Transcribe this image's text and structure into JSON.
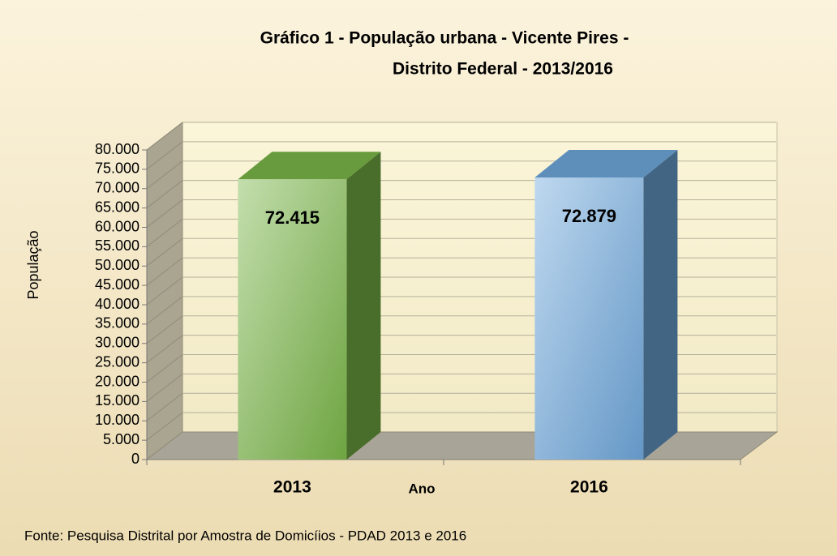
{
  "chart_data": {
    "type": "bar3d",
    "title": [
      "Gráfico 1 - População urbana - Vicente Pires -",
      "Distrito Federal - 2013/2016"
    ],
    "y_label": "População",
    "x_label": "Ano",
    "categories": [
      "2013",
      "2016"
    ],
    "values": [
      72415,
      72879
    ],
    "value_labels": [
      "72.415",
      "72.879"
    ],
    "colors": [
      "#7ab648",
      "#6fa8dc"
    ],
    "ylim": [
      0,
      80000
    ],
    "yticks": [
      0,
      {
        "value": 5000,
        "label": "5.000"
      },
      {
        "value": 10000,
        "label": "10.000"
      },
      {
        "value": 15000,
        "label": "15.000"
      },
      {
        "value": 20000,
        "label": "20.000"
      },
      {
        "value": 25000,
        "label": "25.000"
      },
      {
        "value": 30000,
        "label": "30.000"
      },
      {
        "value": 35000,
        "label": "35.000"
      },
      {
        "value": 40000,
        "label": "40.000"
      },
      {
        "value": 45000,
        "label": "45.000"
      },
      {
        "value": 50000,
        "label": "50.000"
      },
      {
        "value": 55000,
        "label": "55.000"
      },
      {
        "value": 60000,
        "label": "60.000"
      },
      {
        "value": 65000,
        "label": "65.000"
      },
      {
        "value": 70000,
        "label": "70.000"
      },
      {
        "value": 75000,
        "label": "75.000"
      },
      {
        "value": 80000,
        "label": "80.000"
      }
    ],
    "grid": true,
    "source": "Fonte: Pesquisa Distrital por Amostra de Domicíios - PDAD 2013 e 2016"
  }
}
